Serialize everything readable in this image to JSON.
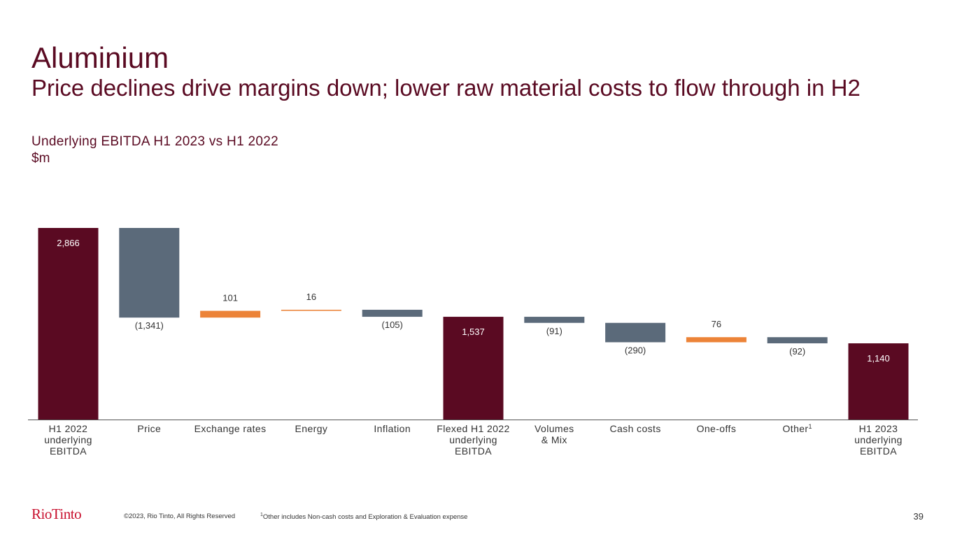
{
  "header": {
    "title": "Aluminium",
    "subtitle": "Price declines drive margins down; lower raw material costs to flow through in H2"
  },
  "colors": {
    "total": "#5a0a22",
    "decrease": "#5b6a7a",
    "increase": "#ec8338",
    "text": "#333333"
  },
  "chart_data": {
    "type": "waterfall",
    "title": "Underlying EBITDA H1 2023 vs H1 2022",
    "unit": "$m",
    "categories": [
      [
        "H1 2022",
        "underlying",
        "EBITDA"
      ],
      [
        "Price"
      ],
      [
        "Exchange rates"
      ],
      [
        "Energy"
      ],
      [
        "Inflation"
      ],
      [
        "Flexed H1 2022",
        "underlying",
        "EBITDA"
      ],
      [
        "Volumes",
        "& Mix"
      ],
      [
        "Cash costs"
      ],
      [
        "One-offs"
      ],
      [
        "Other"
      ],
      [
        "H1 2023",
        "underlying",
        "EBITDA"
      ]
    ],
    "footnote_marks": [
      "",
      "",
      "",
      "",
      "",
      "",
      "",
      "",
      "",
      "1",
      ""
    ],
    "kinds": [
      "total",
      "delta",
      "delta",
      "delta",
      "delta",
      "total",
      "delta",
      "delta",
      "delta",
      "delta",
      "total"
    ],
    "values": [
      2866,
      -1341,
      101,
      16,
      -105,
      1537,
      -91,
      -290,
      76,
      -92,
      1140
    ],
    "labels": [
      "2,866",
      "(1,341)",
      "101",
      "16",
      "(105)",
      "1,537",
      "(91)",
      "(290)",
      "76",
      "(92)",
      "1,140"
    ],
    "ylim": [
      0,
      2866
    ]
  },
  "footer": {
    "logo": "RioTinto",
    "copyright": "©2023, Rio Tinto, All Rights Reserved",
    "note_mark": "1",
    "note": "Other includes Non-cash costs and Exploration & Evaluation expense",
    "page": "39"
  }
}
